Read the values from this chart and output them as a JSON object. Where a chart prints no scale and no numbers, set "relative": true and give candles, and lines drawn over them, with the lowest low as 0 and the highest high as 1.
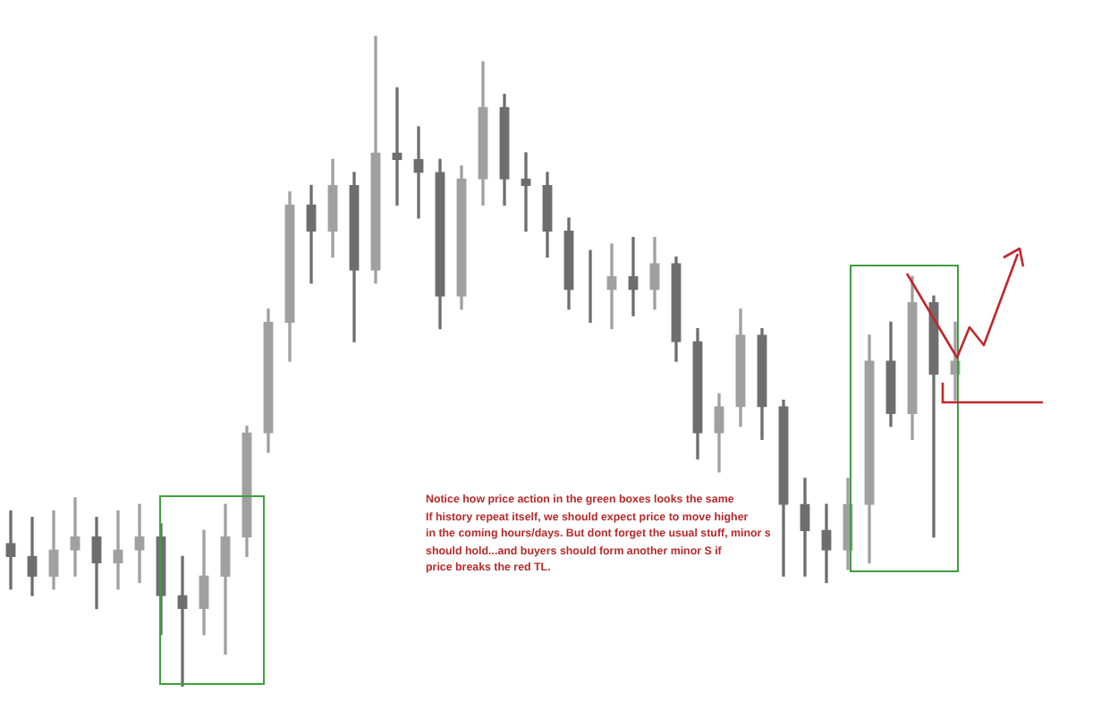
{
  "chart_data": {
    "type": "candlestick",
    "relative": true,
    "colors": [
      "#6e6e6e",
      "#6e6e6e",
      "#a0a0a0",
      "#a0a0a0",
      "#6e6e6e",
      "#a0a0a0",
      "#a0a0a0",
      "#6e6e6e",
      "#6e6e6e",
      "#a0a0a0",
      "#a0a0a0",
      "#a0a0a0",
      "#a0a0a0",
      "#a0a0a0",
      "#6e6e6e",
      "#a0a0a0",
      "#6e6e6e",
      "#a0a0a0",
      "#6e6e6e",
      "#6e6e6e",
      "#6e6e6e",
      "#a0a0a0",
      "#a0a0a0",
      "#6e6e6e",
      "#6e6e6e",
      "#6e6e6e",
      "#6e6e6e",
      "#6e6e6e",
      "#a0a0a0",
      "#6e6e6e",
      "#a0a0a0",
      "#6e6e6e",
      "#6e6e6e",
      "#a0a0a0",
      "#a0a0a0",
      "#6e6e6e",
      "#6e6e6e",
      "#6e6e6e",
      "#6e6e6e",
      "#a0a0a0",
      "#a0a0a0",
      "#6e6e6e",
      "#a0a0a0",
      "#6e6e6e",
      "#a0a0a0"
    ],
    "categories": [
      null,
      null,
      null,
      null,
      null,
      null,
      null,
      null,
      null,
      null,
      null,
      null,
      null,
      null,
      null,
      null,
      null,
      null,
      null,
      null,
      null,
      null,
      null,
      null,
      null,
      null,
      null,
      null,
      null,
      null,
      null,
      null,
      null,
      null,
      null,
      null,
      null,
      null,
      null,
      null,
      null,
      null,
      null,
      null,
      null
    ],
    "ohlc": [
      [
        0.22,
        0.27,
        0.15,
        0.2
      ],
      [
        0.2,
        0.26,
        0.14,
        0.17
      ],
      [
        0.17,
        0.27,
        0.15,
        0.21
      ],
      [
        0.21,
        0.29,
        0.17,
        0.23
      ],
      [
        0.23,
        0.26,
        0.12,
        0.19
      ],
      [
        0.19,
        0.27,
        0.15,
        0.21
      ],
      [
        0.21,
        0.28,
        0.16,
        0.23
      ],
      [
        0.23,
        0.25,
        0.08,
        0.14
      ],
      [
        0.14,
        0.2,
        0.0,
        0.12
      ],
      [
        0.12,
        0.24,
        0.08,
        0.17
      ],
      [
        0.17,
        0.28,
        0.05,
        0.23
      ],
      [
        0.23,
        0.4,
        0.2,
        0.39
      ],
      [
        0.39,
        0.58,
        0.36,
        0.56
      ],
      [
        0.56,
        0.76,
        0.5,
        0.74
      ],
      [
        0.74,
        0.77,
        0.62,
        0.7
      ],
      [
        0.7,
        0.81,
        0.66,
        0.77
      ],
      [
        0.77,
        0.79,
        0.53,
        0.64
      ],
      [
        0.64,
        1.0,
        0.62,
        0.82
      ],
      [
        0.82,
        0.92,
        0.74,
        0.81
      ],
      [
        0.81,
        0.86,
        0.72,
        0.79
      ],
      [
        0.79,
        0.81,
        0.55,
        0.6
      ],
      [
        0.6,
        0.8,
        0.58,
        0.78
      ],
      [
        0.78,
        0.96,
        0.74,
        0.89
      ],
      [
        0.89,
        0.91,
        0.74,
        0.78
      ],
      [
        0.78,
        0.82,
        0.7,
        0.77
      ],
      [
        0.77,
        0.79,
        0.66,
        0.7
      ],
      [
        0.7,
        0.72,
        0.58,
        0.61
      ],
      [
        0.61,
        0.67,
        0.56,
        0.61
      ],
      [
        0.61,
        0.68,
        0.55,
        0.63
      ],
      [
        0.63,
        0.69,
        0.57,
        0.61
      ],
      [
        0.61,
        0.69,
        0.58,
        0.65
      ],
      [
        0.65,
        0.66,
        0.5,
        0.53
      ],
      [
        0.53,
        0.55,
        0.35,
        0.39
      ],
      [
        0.39,
        0.45,
        0.33,
        0.43
      ],
      [
        0.43,
        0.58,
        0.4,
        0.54
      ],
      [
        0.54,
        0.55,
        0.38,
        0.43
      ],
      [
        0.43,
        0.44,
        0.17,
        0.28
      ],
      [
        0.28,
        0.32,
        0.17,
        0.24
      ],
      [
        0.24,
        0.28,
        0.16,
        0.21
      ],
      [
        0.21,
        0.32,
        0.18,
        0.28
      ],
      [
        0.28,
        0.54,
        0.19,
        0.5
      ],
      [
        0.5,
        0.56,
        0.4,
        0.42
      ],
      [
        0.42,
        0.63,
        0.38,
        0.59
      ],
      [
        0.59,
        0.6,
        0.23,
        0.48
      ],
      [
        0.48,
        0.56,
        0.44,
        0.5
      ]
    ],
    "annotations": [
      "Notice how price action in the green boxes looks the same",
      "If history repeat itself, we should expect price to move higher",
      "in the coming hours/days. But dont forget the usual stuff, minor s",
      "should hold...and buyers should form another minor S if",
      "price breaks the red TL."
    ]
  }
}
